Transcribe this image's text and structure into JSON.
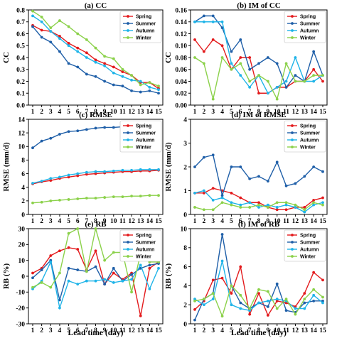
{
  "xlabel": "Lead time (day)",
  "chart_data": [
    {
      "type": "line",
      "title": "(a) CC",
      "ylabel": "CC",
      "x": [
        1,
        2,
        3,
        4,
        5,
        6,
        7,
        8,
        9,
        10,
        11,
        12,
        13,
        14,
        15
      ],
      "ylim": [
        0,
        0.8
      ],
      "yticks": [
        "0.0",
        "0.1",
        "0.2",
        "0.3",
        "0.4",
        "0.5",
        "0.6",
        "0.7",
        "0.8"
      ],
      "legend": "top-right",
      "series": [
        {
          "name": "Spring",
          "color": "#e31a1c",
          "values": [
            0.67,
            0.63,
            0.62,
            0.58,
            0.52,
            0.48,
            0.44,
            0.38,
            0.35,
            0.32,
            0.28,
            0.25,
            0.19,
            0.19,
            0.14
          ]
        },
        {
          "name": "Summer",
          "color": "#1f5fa8",
          "values": [
            0.66,
            0.57,
            0.53,
            0.45,
            0.35,
            0.32,
            0.26,
            0.24,
            0.2,
            0.17,
            0.16,
            0.12,
            0.11,
            0.12,
            0.1
          ]
        },
        {
          "name": "Autumn",
          "color": "#1fb4e8",
          "values": [
            0.75,
            0.7,
            0.62,
            0.56,
            0.5,
            0.45,
            0.4,
            0.36,
            0.33,
            0.27,
            0.24,
            0.21,
            0.2,
            0.15,
            0.13
          ]
        },
        {
          "name": "Winter",
          "color": "#8bd14a",
          "values": [
            0.79,
            0.74,
            0.65,
            0.71,
            0.66,
            0.6,
            0.55,
            0.48,
            0.41,
            0.39,
            0.3,
            0.25,
            0.17,
            0.19,
            0.16
          ]
        }
      ]
    },
    {
      "type": "line",
      "title": "(b) IM of CC",
      "ylabel": "CC",
      "x": [
        1,
        2,
        3,
        4,
        5,
        6,
        7,
        8,
        9,
        10,
        11,
        12,
        13,
        14,
        15
      ],
      "ylim": [
        0,
        0.16
      ],
      "yticks": [
        "0.00",
        "0.02",
        "0.04",
        "0.06",
        "0.08",
        "0.10",
        "0.12",
        "0.14",
        "0.16"
      ],
      "legend": "top-right",
      "series": [
        {
          "name": "Spring",
          "color": "#e31a1c",
          "values": [
            0.11,
            0.09,
            0.11,
            0.1,
            0.06,
            0.08,
            0.08,
            0.02,
            0.02,
            0.03,
            0.03,
            0.04,
            0.04,
            0.06,
            0.04
          ]
        },
        {
          "name": "Summer",
          "color": "#1f5fa8",
          "values": [
            0.14,
            0.15,
            0.15,
            0.13,
            0.09,
            0.11,
            0.06,
            0.07,
            0.08,
            0.07,
            0.03,
            0.05,
            0.04,
            0.09,
            0.05
          ]
        },
        {
          "name": "Autumn",
          "color": "#1fb4e8",
          "values": [
            0.14,
            0.14,
            0.14,
            0.14,
            0.07,
            0.05,
            0.03,
            0.05,
            0.02,
            0.03,
            0.04,
            0.08,
            0.04,
            0.04,
            0.05
          ]
        },
        {
          "name": "Winter",
          "color": "#8bd14a",
          "values": [
            0.08,
            0.07,
            0.01,
            0.08,
            0.06,
            0.07,
            0.04,
            0.05,
            0.04,
            0.01,
            0.07,
            0.04,
            0.04,
            0.05,
            0.05
          ]
        }
      ]
    },
    {
      "type": "line",
      "title": "(c) RMSE",
      "ylabel": "RMSE (mm/d)",
      "x": [
        1,
        2,
        3,
        4,
        5,
        6,
        7,
        8,
        9,
        10,
        11,
        12,
        13,
        14,
        15
      ],
      "ylim": [
        0,
        14
      ],
      "yticks": [
        "0",
        "2",
        "4",
        "6",
        "8",
        "10",
        "12",
        "14"
      ],
      "legend": "top-right",
      "series": [
        {
          "name": "Spring",
          "color": "#e31a1c",
          "values": [
            4.5,
            4.8,
            5.0,
            5.3,
            5.5,
            5.7,
            5.9,
            6.0,
            6.1,
            6.2,
            6.3,
            6.3,
            6.4,
            6.4,
            6.5
          ]
        },
        {
          "name": "Summer",
          "color": "#1f5fa8",
          "values": [
            9.8,
            10.8,
            11.2,
            11.8,
            12.2,
            12.3,
            12.5,
            12.7,
            12.8,
            12.8,
            12.9,
            13.0,
            13.0,
            13.0,
            13.1
          ]
        },
        {
          "name": "Autumn",
          "color": "#1fb4e8",
          "values": [
            4.6,
            4.9,
            5.3,
            5.5,
            5.8,
            6.0,
            6.2,
            6.3,
            6.3,
            6.4,
            6.5,
            6.5,
            6.6,
            6.6,
            6.6
          ]
        },
        {
          "name": "Winter",
          "color": "#8bd14a",
          "values": [
            1.7,
            1.8,
            2.0,
            2.1,
            2.2,
            2.3,
            2.4,
            2.4,
            2.5,
            2.6,
            2.6,
            2.7,
            2.7,
            2.8,
            2.8
          ]
        }
      ]
    },
    {
      "type": "line",
      "title": "(d) IM of RMSE",
      "ylabel": "RMSE (mm/d)",
      "x": [
        1,
        2,
        3,
        4,
        5,
        6,
        7,
        8,
        9,
        10,
        11,
        12,
        13,
        14,
        15
      ],
      "ylim": [
        0,
        4
      ],
      "yticks": [
        "0",
        "1",
        "2",
        "3",
        "4"
      ],
      "legend": "top-right",
      "series": [
        {
          "name": "Spring",
          "color": "#e31a1c",
          "values": [
            0.9,
            0.9,
            1.1,
            1.0,
            0.9,
            0.7,
            0.5,
            0.5,
            0.3,
            0.2,
            0.2,
            0.3,
            0.3,
            0.6,
            0.7
          ]
        },
        {
          "name": "Summer",
          "color": "#1f5fa8",
          "values": [
            2.0,
            2.4,
            2.5,
            0.8,
            2.0,
            2.0,
            1.5,
            1.6,
            1.4,
            2.2,
            1.2,
            1.3,
            1.6,
            2.0,
            1.8
          ]
        },
        {
          "name": "Autumn",
          "color": "#1fb4e8",
          "values": [
            0.9,
            1.0,
            0.6,
            0.7,
            0.5,
            0.4,
            0.5,
            0.3,
            0.4,
            0.3,
            0.4,
            0.3,
            0.1,
            0.4,
            0.5
          ]
        },
        {
          "name": "Winter",
          "color": "#8bd14a",
          "values": [
            0.3,
            0.2,
            0.2,
            0.5,
            0.4,
            0.3,
            0.3,
            0.4,
            0.3,
            0.5,
            0.5,
            0.4,
            0.2,
            0.5,
            0.4
          ]
        }
      ]
    },
    {
      "type": "line",
      "title": "(e) RB",
      "ylabel": "RB (%)",
      "x": [
        1,
        2,
        3,
        4,
        5,
        6,
        7,
        8,
        9,
        10,
        11,
        12,
        13,
        14,
        15
      ],
      "ylim": [
        -30,
        30
      ],
      "yticks": [
        "-30",
        "-20",
        "-10",
        "0",
        "10",
        "20",
        "30"
      ],
      "legend": "top-right",
      "series": [
        {
          "name": "Spring",
          "color": "#e31a1c",
          "values": [
            2,
            5,
            13,
            16,
            18,
            17,
            4,
            16,
            -5,
            2,
            -2,
            2,
            -25,
            5,
            9
          ]
        },
        {
          "name": "Summer",
          "color": "#1f5fa8",
          "values": [
            -1,
            4,
            10,
            -15,
            5,
            4,
            3,
            6,
            -5,
            5,
            -3,
            1,
            5,
            7,
            8
          ]
        },
        {
          "name": "Autumn",
          "color": "#1fb4e8",
          "values": [
            -8,
            -3,
            9,
            -20,
            -3,
            -5,
            -3,
            -3,
            -2,
            -4,
            -3,
            -2,
            7,
            -8,
            5
          ]
        },
        {
          "name": "Winter",
          "color": "#8bd14a",
          "values": [
            -7,
            -4,
            -7,
            2,
            27,
            30,
            3,
            30,
            10,
            15,
            15,
            -10,
            14,
            9,
            9
          ]
        }
      ]
    },
    {
      "type": "line",
      "title": "(f) IM of RB",
      "ylabel": "RB (%)",
      "x": [
        1,
        2,
        3,
        4,
        5,
        6,
        7,
        8,
        9,
        10,
        11,
        12,
        13,
        14,
        15
      ],
      "ylim": [
        0,
        10
      ],
      "yticks": [
        "0",
        "2",
        "4",
        "6",
        "8",
        "10"
      ],
      "legend": "top-right",
      "series": [
        {
          "name": "Spring",
          "color": "#e31a1c",
          "values": [
            1.5,
            2.4,
            4.6,
            4.8,
            3.2,
            6.0,
            1.0,
            3.2,
            0.9,
            2.4,
            2.2,
            1.8,
            3.2,
            5.4,
            4.6
          ]
        },
        {
          "name": "Summer",
          "color": "#1f5fa8",
          "values": [
            0.4,
            2.6,
            3.2,
            9.4,
            4.0,
            2.2,
            1.6,
            2.2,
            1.8,
            4.2,
            1.4,
            1.2,
            2.2,
            2.4,
            2.4
          ]
        },
        {
          "name": "Autumn",
          "color": "#1fb4e8",
          "values": [
            2.6,
            2.0,
            2.6,
            6.6,
            2.0,
            1.6,
            1.4,
            2.2,
            2.4,
            2.6,
            2.4,
            1.6,
            1.6,
            3.0,
            2.2
          ]
        },
        {
          "name": "Winter",
          "color": "#8bd14a",
          "values": [
            2.4,
            2.6,
            3.2,
            0.8,
            4.0,
            3.0,
            1.6,
            3.6,
            3.4,
            1.6,
            2.6,
            1.0,
            2.6,
            3.6,
            2.8
          ]
        }
      ]
    }
  ]
}
